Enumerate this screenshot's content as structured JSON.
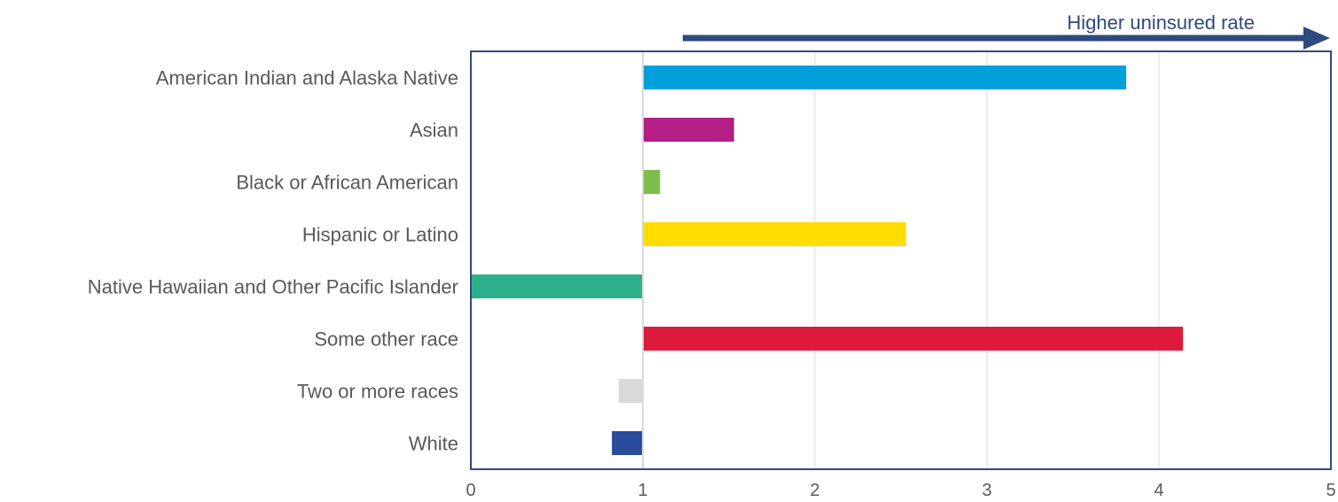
{
  "chart_data": {
    "type": "bar",
    "orientation": "horizontal",
    "baseline": 1,
    "categories": [
      "American Indian and Alaska Native",
      "Asian",
      "Black or African American",
      "Hispanic or Latino",
      "Native Hawaiian and Other Pacific Islander",
      "Some other race",
      "Two or more races",
      "White"
    ],
    "values": [
      3.81,
      1.53,
      1.1,
      2.53,
      0.0,
      4.14,
      0.86,
      0.82
    ],
    "colors": [
      "#00A0DC",
      "#B51E84",
      "#7DBE4A",
      "#FFDD00",
      "#2EAF8C",
      "#DE1A3C",
      "#D9D9D9",
      "#2B4C9B"
    ],
    "xlim": [
      0,
      5
    ],
    "xticks": [
      0,
      1,
      2,
      3,
      4,
      5
    ],
    "grid": true,
    "annotation": {
      "text": "Higher uninsured rate",
      "color": "#2F4A7E"
    },
    "frame_color": "#2F4A7E",
    "title": "",
    "xlabel": "",
    "ylabel": ""
  }
}
